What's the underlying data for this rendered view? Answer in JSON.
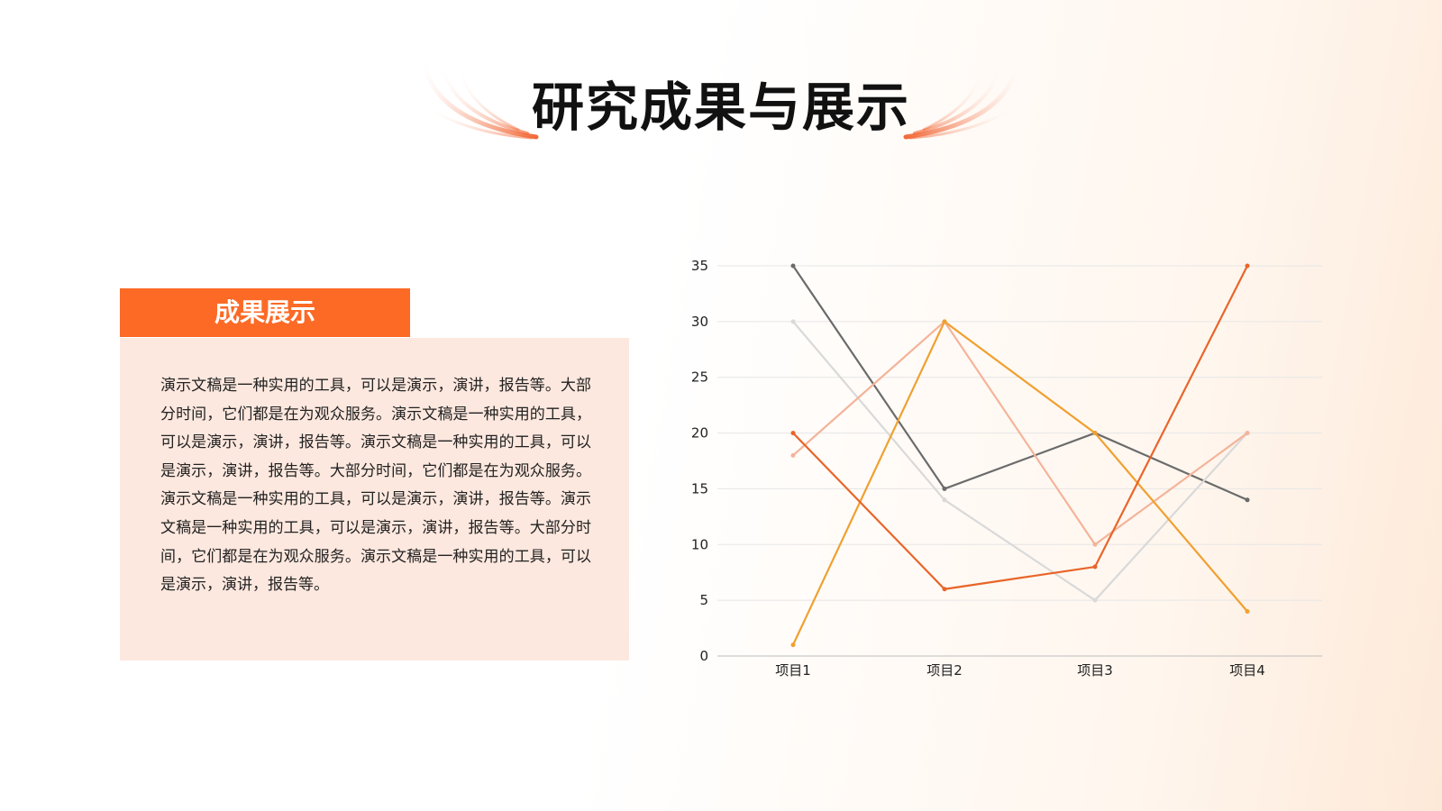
{
  "title": "研究成果与展示",
  "card": {
    "title": "成果展示",
    "text": "演示文稿是一种实用的工具，可以是演示，演讲，报告等。大部分时间，它们都是在为观众服务。演示文稿是一种实用的工具，可以是演示，演讲，报告等。演示文稿是一种实用的工具，可以是演示，演讲，报告等。大部分时间，它们都是在为观众服务。演示文稿是一种实用的工具，可以是演示，演讲，报告等。演示文稿是一种实用的工具，可以是演示，演讲，报告等。大部分时间，它们都是在为观众服务。演示文稿是一种实用的工具，可以是演示，演讲，报告等。"
  },
  "chart_data": {
    "type": "line",
    "categories": [
      "项目1",
      "项目2",
      "项目3",
      "项目4"
    ],
    "series": [
      {
        "color": "#6b6b6b",
        "values": [
          35,
          15,
          20,
          14
        ]
      },
      {
        "color": "#d9d9d9",
        "values": [
          30,
          14,
          5,
          20
        ]
      },
      {
        "color": "#f4b49a",
        "values": [
          18,
          30,
          10,
          20
        ]
      },
      {
        "color": "#f0a030",
        "values": [
          1,
          30,
          20,
          4
        ]
      },
      {
        "color": "#e8652a",
        "values": [
          20,
          6,
          8,
          35
        ]
      }
    ],
    "ylim": [
      0,
      35
    ],
    "yticks": [
      0,
      5,
      10,
      15,
      20,
      25,
      30,
      35
    ],
    "grid": true
  }
}
